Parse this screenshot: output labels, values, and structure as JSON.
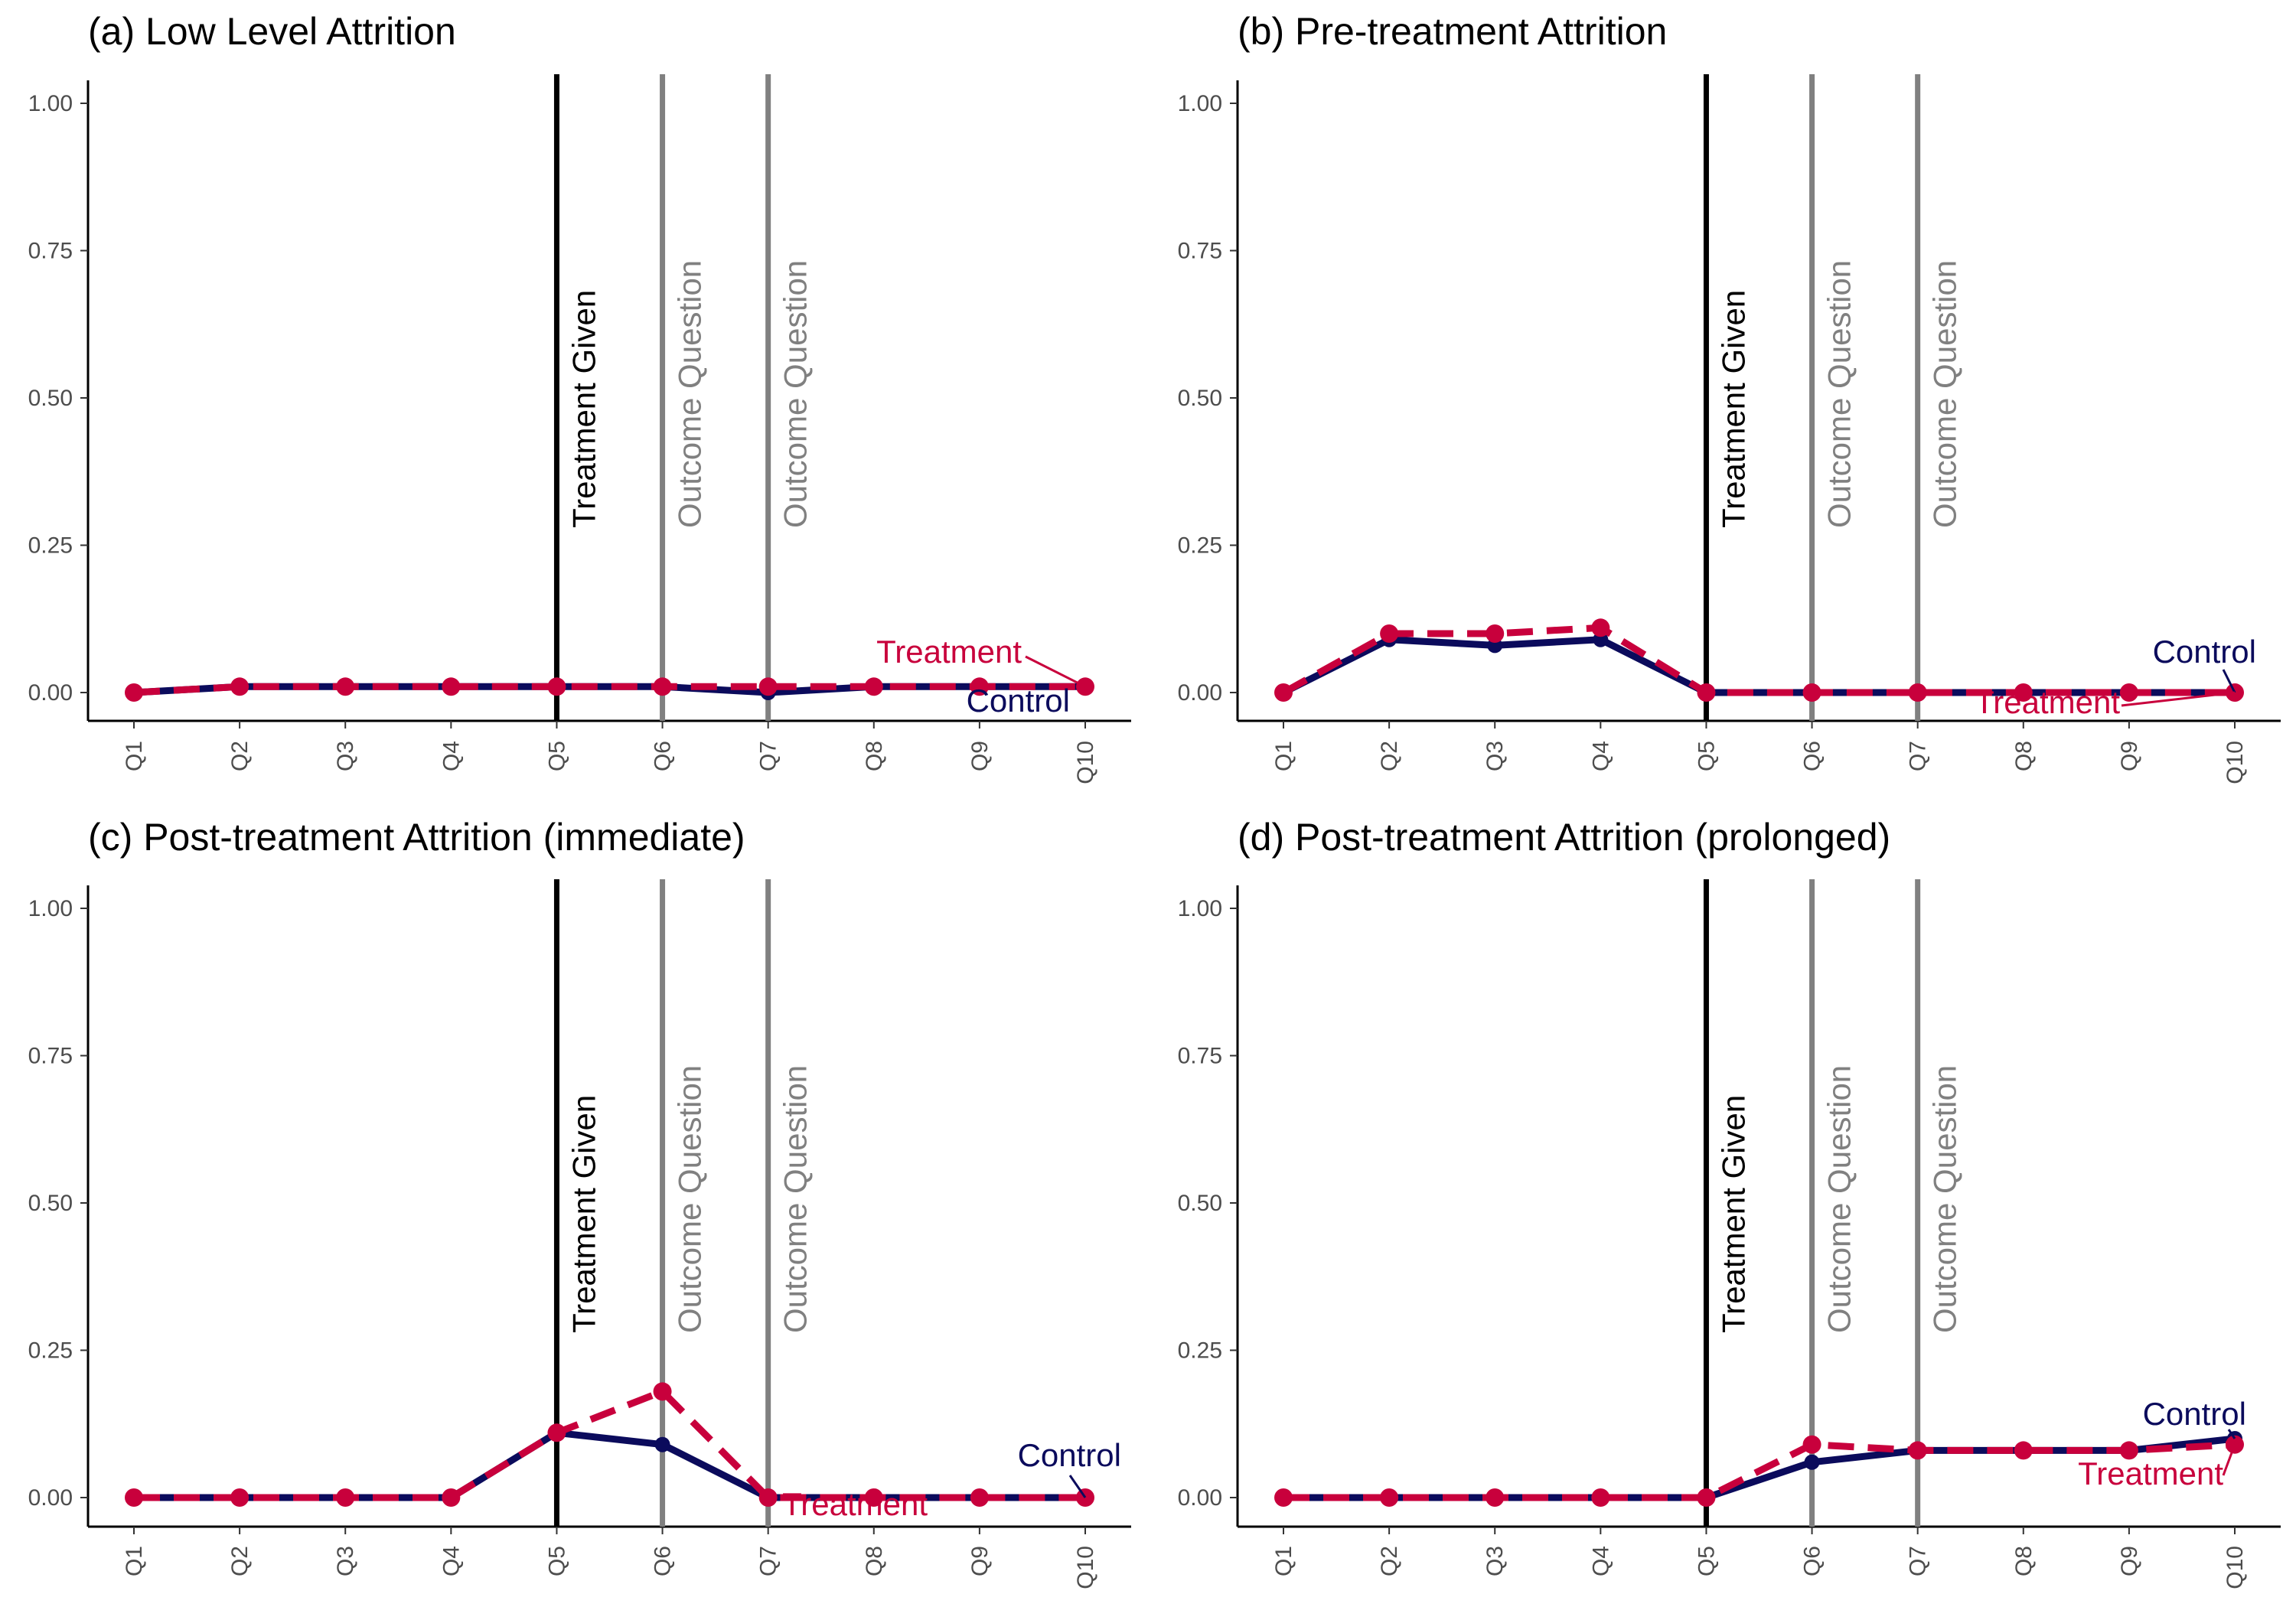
{
  "chart_data": [
    {
      "type": "line",
      "title": "(a) Low Level Attrition",
      "xlabel": "",
      "ylabel": "",
      "categories": [
        "Q1",
        "Q2",
        "Q3",
        "Q4",
        "Q5",
        "Q6",
        "Q7",
        "Q8",
        "Q9",
        "Q10"
      ],
      "ylim": [
        0,
        1
      ],
      "yticks": [
        "0.00",
        "0.25",
        "0.50",
        "0.75",
        "1.00"
      ],
      "grid": false,
      "series": [
        {
          "name": "Control",
          "values": [
            0,
            0.01,
            0.01,
            0.01,
            0.01,
            0.01,
            0.0,
            0.01,
            0.01,
            0.01
          ],
          "color": "#0b0b5c",
          "dash": "solid"
        },
        {
          "name": "Treatment",
          "values": [
            0,
            0.01,
            0.01,
            0.01,
            0.01,
            0.01,
            0.01,
            0.01,
            0.01,
            0.01
          ],
          "color": "#c8003c",
          "dash": "dashed"
        }
      ],
      "vlines": [
        {
          "at": "Q5",
          "label": "Treatment Given",
          "color": "#000000"
        },
        {
          "at": "Q6",
          "label": "Outcome Question",
          "color": "#808080"
        },
        {
          "at": "Q7",
          "label": "Outcome Question",
          "color": "#808080"
        }
      ]
    },
    {
      "type": "line",
      "title": "(b) Pre-treatment Attrition",
      "xlabel": "",
      "ylabel": "",
      "categories": [
        "Q1",
        "Q2",
        "Q3",
        "Q4",
        "Q5",
        "Q6",
        "Q7",
        "Q8",
        "Q9",
        "Q10"
      ],
      "ylim": [
        0,
        1
      ],
      "yticks": [
        "0.00",
        "0.25",
        "0.50",
        "0.75",
        "1.00"
      ],
      "grid": false,
      "series": [
        {
          "name": "Control",
          "values": [
            0,
            0.09,
            0.08,
            0.09,
            0.0,
            0.0,
            0.0,
            0.0,
            0.0,
            0.0
          ],
          "color": "#0b0b5c",
          "dash": "solid"
        },
        {
          "name": "Treatment",
          "values": [
            0,
            0.1,
            0.1,
            0.11,
            0.0,
            0.0,
            0.0,
            0.0,
            0.0,
            0.0
          ],
          "color": "#c8003c",
          "dash": "dashed"
        }
      ],
      "vlines": [
        {
          "at": "Q5",
          "label": "Treatment Given",
          "color": "#000000"
        },
        {
          "at": "Q6",
          "label": "Outcome Question",
          "color": "#808080"
        },
        {
          "at": "Q7",
          "label": "Outcome Question",
          "color": "#808080"
        }
      ]
    },
    {
      "type": "line",
      "title": "(c) Post-treatment Attrition (immediate)",
      "xlabel": "",
      "ylabel": "",
      "categories": [
        "Q1",
        "Q2",
        "Q3",
        "Q4",
        "Q5",
        "Q6",
        "Q7",
        "Q8",
        "Q9",
        "Q10"
      ],
      "ylim": [
        0,
        1
      ],
      "yticks": [
        "0.00",
        "0.25",
        "0.50",
        "0.75",
        "1.00"
      ],
      "grid": false,
      "series": [
        {
          "name": "Control",
          "values": [
            0,
            0,
            0,
            0,
            0.11,
            0.09,
            0.0,
            0.0,
            0.0,
            0.0
          ],
          "color": "#0b0b5c",
          "dash": "solid"
        },
        {
          "name": "Treatment",
          "values": [
            0,
            0,
            0,
            0,
            0.11,
            0.18,
            0.0,
            0.0,
            0.0,
            0.0
          ],
          "color": "#c8003c",
          "dash": "dashed"
        }
      ],
      "vlines": [
        {
          "at": "Q5",
          "label": "Treatment Given",
          "color": "#000000"
        },
        {
          "at": "Q6",
          "label": "Outcome Question",
          "color": "#808080"
        },
        {
          "at": "Q7",
          "label": "Outcome Question",
          "color": "#808080"
        }
      ]
    },
    {
      "type": "line",
      "title": "(d) Post-treatment Attrition (prolonged)",
      "xlabel": "",
      "ylabel": "",
      "categories": [
        "Q1",
        "Q2",
        "Q3",
        "Q4",
        "Q5",
        "Q6",
        "Q7",
        "Q8",
        "Q9",
        "Q10"
      ],
      "ylim": [
        0,
        1
      ],
      "yticks": [
        "0.00",
        "0.25",
        "0.50",
        "0.75",
        "1.00"
      ],
      "grid": false,
      "series": [
        {
          "name": "Control",
          "values": [
            0,
            0,
            0,
            0,
            0.0,
            0.06,
            0.08,
            0.08,
            0.08,
            0.1
          ],
          "color": "#0b0b5c",
          "dash": "solid"
        },
        {
          "name": "Treatment",
          "values": [
            0,
            0,
            0,
            0,
            0.0,
            0.09,
            0.08,
            0.08,
            0.08,
            0.09
          ],
          "color": "#c8003c",
          "dash": "dashed"
        }
      ],
      "vlines": [
        {
          "at": "Q5",
          "label": "Treatment Given",
          "color": "#000000"
        },
        {
          "at": "Q6",
          "label": "Outcome Question",
          "color": "#808080"
        },
        {
          "at": "Q7",
          "label": "Outcome Question",
          "color": "#808080"
        }
      ]
    }
  ]
}
